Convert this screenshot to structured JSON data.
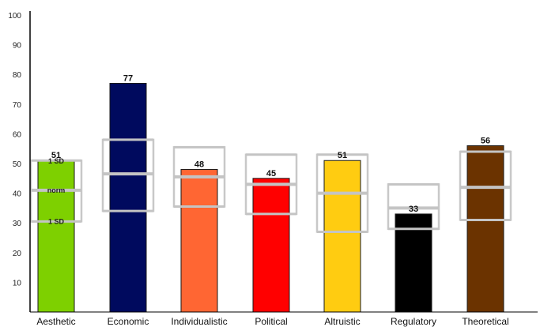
{
  "chart_data": {
    "type": "bar",
    "ylim": [
      0,
      100
    ],
    "yticks": [
      10,
      20,
      30,
      40,
      50,
      60,
      70,
      80,
      90,
      100
    ],
    "categories": [
      "Aesthetic",
      "Economic",
      "Individualistic",
      "Political",
      "Altruistic",
      "Regulatory",
      "Theoretical"
    ],
    "values": [
      51,
      77,
      48,
      45,
      51,
      33,
      56
    ],
    "data_labels": [
      "51",
      "77",
      "48",
      "45",
      "51",
      "33",
      "56"
    ],
    "colors": [
      "#7ed000",
      "#000a5e",
      "#ff6633",
      "#ff0000",
      "#ffcc11",
      "#000000",
      "#6b3300"
    ],
    "norm_bands": [
      {
        "low": 30.5,
        "norm": 41,
        "high": 51
      },
      {
        "low": 34,
        "norm": 46.5,
        "high": 58
      },
      {
        "low": 35.5,
        "norm": 45.5,
        "high": 55.5
      },
      {
        "low": 33,
        "norm": 43,
        "high": 53
      },
      {
        "low": 27,
        "norm": 40,
        "high": 53
      },
      {
        "low": 28,
        "norm": 35,
        "high": 43
      },
      {
        "low": 31,
        "norm": 42,
        "high": 54
      }
    ],
    "band_annotations": {
      "high": "1 SD",
      "norm": "norm",
      "low": "1 SD"
    },
    "grid": false,
    "legend": "none"
  }
}
